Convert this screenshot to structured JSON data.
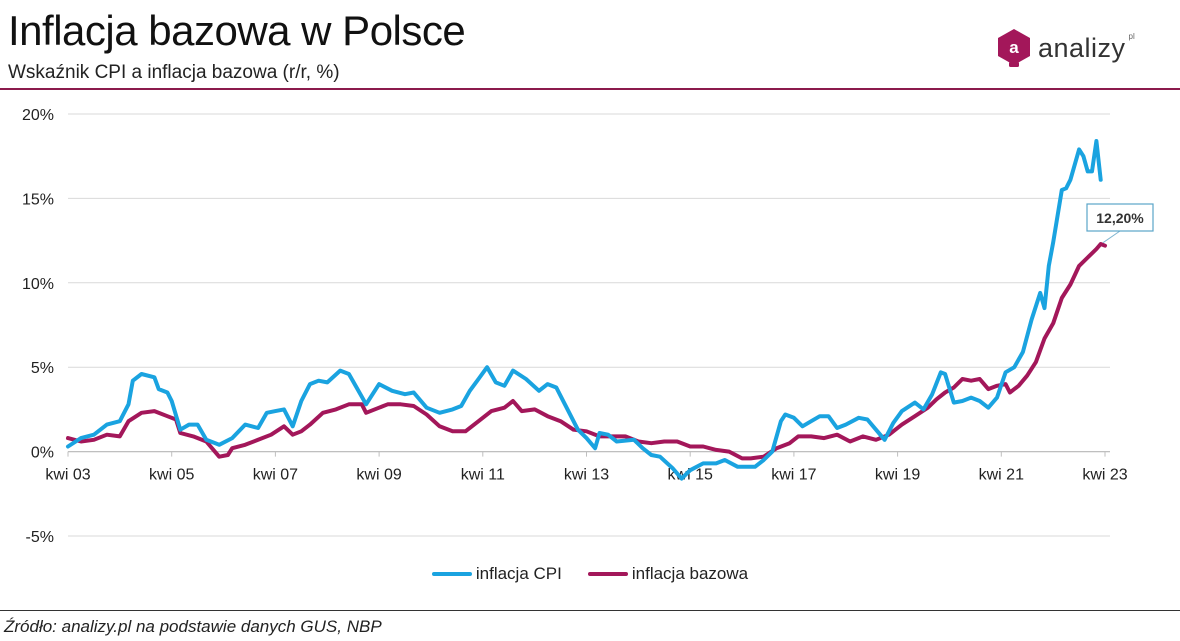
{
  "header": {
    "title": "Inflacja bazowa w Polsce",
    "subtitle": "Wskaźnik CPI a inflacja bazowa (r/r, %)"
  },
  "logo": {
    "text": "analizy",
    "sup": "pl",
    "color": "#a3175a",
    "icon": "analizy-logo-icon"
  },
  "colors": {
    "cpi": "#1aa3e0",
    "core": "#a3175a",
    "rule": "#8b1a4c"
  },
  "source": "Źródło: analizy.pl na podstawie danych GUS, NBP",
  "chart_data": {
    "type": "line",
    "ylim": [
      -5,
      20
    ],
    "yticks": [
      "-5%",
      "0%",
      "5%",
      "10%",
      "15%",
      "20%"
    ],
    "xticks": [
      "kwi 03",
      "kwi 05",
      "kwi 07",
      "kwi 09",
      "kwi 11",
      "kwi 13",
      "kwi 15",
      "kwi 17",
      "kwi 19",
      "kwi 21",
      "kwi 23"
    ],
    "x_range": [
      "2003-04",
      "2023-04"
    ],
    "grid": "horizontal",
    "legend": "bottom",
    "annotation": {
      "text": "12,20%",
      "series": "inflacja bazowa",
      "date": "2023-04",
      "value": 12.2
    },
    "series": [
      {
        "name": "inflacja CPI",
        "color": "#1aa3e0",
        "points": [
          [
            "2003-04",
            0.3
          ],
          [
            "2003-07",
            0.8
          ],
          [
            "2003-10",
            1.0
          ],
          [
            "2004-01",
            1.6
          ],
          [
            "2004-04",
            1.8
          ],
          [
            "2004-06",
            2.8
          ],
          [
            "2004-07",
            4.2
          ],
          [
            "2004-09",
            4.6
          ],
          [
            "2004-12",
            4.4
          ],
          [
            "2005-01",
            3.7
          ],
          [
            "2005-03",
            3.5
          ],
          [
            "2005-04",
            3.0
          ],
          [
            "2005-06",
            1.3
          ],
          [
            "2005-08",
            1.6
          ],
          [
            "2005-10",
            1.6
          ],
          [
            "2005-12",
            0.7
          ],
          [
            "2006-03",
            0.4
          ],
          [
            "2006-06",
            0.8
          ],
          [
            "2006-09",
            1.6
          ],
          [
            "2006-12",
            1.4
          ],
          [
            "2007-02",
            2.3
          ],
          [
            "2007-04",
            2.4
          ],
          [
            "2007-06",
            2.5
          ],
          [
            "2007-08",
            1.5
          ],
          [
            "2007-10",
            3.0
          ],
          [
            "2007-12",
            4.0
          ],
          [
            "2008-02",
            4.2
          ],
          [
            "2008-04",
            4.1
          ],
          [
            "2008-07",
            4.8
          ],
          [
            "2008-09",
            4.6
          ],
          [
            "2008-11",
            3.7
          ],
          [
            "2009-01",
            2.8
          ],
          [
            "2009-04",
            4.0
          ],
          [
            "2009-07",
            3.6
          ],
          [
            "2009-10",
            3.4
          ],
          [
            "2009-12",
            3.5
          ],
          [
            "2010-03",
            2.6
          ],
          [
            "2010-06",
            2.3
          ],
          [
            "2010-09",
            2.5
          ],
          [
            "2010-11",
            2.7
          ],
          [
            "2011-01",
            3.6
          ],
          [
            "2011-03",
            4.3
          ],
          [
            "2011-05",
            5.0
          ],
          [
            "2011-07",
            4.1
          ],
          [
            "2011-09",
            3.9
          ],
          [
            "2011-11",
            4.8
          ],
          [
            "2012-02",
            4.3
          ],
          [
            "2012-05",
            3.6
          ],
          [
            "2012-07",
            4.0
          ],
          [
            "2012-09",
            3.8
          ],
          [
            "2012-11",
            2.8
          ],
          [
            "2013-02",
            1.3
          ],
          [
            "2013-04",
            0.8
          ],
          [
            "2013-06",
            0.2
          ],
          [
            "2013-07",
            1.1
          ],
          [
            "2013-09",
            1.0
          ],
          [
            "2013-11",
            0.6
          ],
          [
            "2014-03",
            0.7
          ],
          [
            "2014-05",
            0.2
          ],
          [
            "2014-07",
            -0.2
          ],
          [
            "2014-09",
            -0.3
          ],
          [
            "2014-12",
            -1.0
          ],
          [
            "2015-02",
            -1.6
          ],
          [
            "2015-04",
            -1.1
          ],
          [
            "2015-07",
            -0.7
          ],
          [
            "2015-10",
            -0.7
          ],
          [
            "2015-12",
            -0.5
          ],
          [
            "2016-03",
            -0.9
          ],
          [
            "2016-05",
            -0.9
          ],
          [
            "2016-07",
            -0.9
          ],
          [
            "2016-09",
            -0.5
          ],
          [
            "2016-11",
            0.0
          ],
          [
            "2017-01",
            1.8
          ],
          [
            "2017-02",
            2.2
          ],
          [
            "2017-04",
            2.0
          ],
          [
            "2017-06",
            1.5
          ],
          [
            "2017-08",
            1.8
          ],
          [
            "2017-10",
            2.1
          ],
          [
            "2017-12",
            2.1
          ],
          [
            "2018-02",
            1.4
          ],
          [
            "2018-04",
            1.6
          ],
          [
            "2018-07",
            2.0
          ],
          [
            "2018-09",
            1.9
          ],
          [
            "2018-11",
            1.3
          ],
          [
            "2019-01",
            0.7
          ],
          [
            "2019-03",
            1.7
          ],
          [
            "2019-05",
            2.4
          ],
          [
            "2019-08",
            2.9
          ],
          [
            "2019-10",
            2.5
          ],
          [
            "2019-12",
            3.4
          ],
          [
            "2020-02",
            4.7
          ],
          [
            "2020-03",
            4.6
          ],
          [
            "2020-05",
            2.9
          ],
          [
            "2020-07",
            3.0
          ],
          [
            "2020-09",
            3.2
          ],
          [
            "2020-11",
            3.0
          ],
          [
            "2021-01",
            2.6
          ],
          [
            "2021-03",
            3.2
          ],
          [
            "2021-05",
            4.7
          ],
          [
            "2021-07",
            5.0
          ],
          [
            "2021-09",
            5.9
          ],
          [
            "2021-11",
            7.8
          ],
          [
            "2022-01",
            9.4
          ],
          [
            "2022-02",
            8.5
          ],
          [
            "2022-03",
            11.0
          ],
          [
            "2022-04",
            12.4
          ],
          [
            "2022-06",
            15.5
          ],
          [
            "2022-07",
            15.6
          ],
          [
            "2022-08",
            16.1
          ],
          [
            "2022-10",
            17.9
          ],
          [
            "2022-11",
            17.5
          ],
          [
            "2022-12",
            16.6
          ],
          [
            "2023-01",
            16.6
          ],
          [
            "2023-02",
            18.4
          ],
          [
            "2023-03",
            16.1
          ]
        ]
      },
      {
        "name": "inflacja bazowa",
        "color": "#a3175a",
        "points": [
          [
            "2003-04",
            0.8
          ],
          [
            "2003-07",
            0.6
          ],
          [
            "2003-10",
            0.7
          ],
          [
            "2004-01",
            1.0
          ],
          [
            "2004-04",
            0.9
          ],
          [
            "2004-06",
            1.8
          ],
          [
            "2004-09",
            2.3
          ],
          [
            "2004-12",
            2.4
          ],
          [
            "2005-03",
            2.1
          ],
          [
            "2005-05",
            1.9
          ],
          [
            "2005-06",
            1.1
          ],
          [
            "2005-09",
            0.9
          ],
          [
            "2005-12",
            0.6
          ],
          [
            "2006-03",
            -0.3
          ],
          [
            "2006-05",
            -0.2
          ],
          [
            "2006-06",
            0.2
          ],
          [
            "2006-09",
            0.4
          ],
          [
            "2006-12",
            0.7
          ],
          [
            "2007-03",
            1.0
          ],
          [
            "2007-06",
            1.5
          ],
          [
            "2007-08",
            1.0
          ],
          [
            "2007-10",
            1.2
          ],
          [
            "2007-12",
            1.6
          ],
          [
            "2008-03",
            2.3
          ],
          [
            "2008-06",
            2.5
          ],
          [
            "2008-09",
            2.8
          ],
          [
            "2008-12",
            2.8
          ],
          [
            "2009-01",
            2.3
          ],
          [
            "2009-04",
            2.6
          ],
          [
            "2009-06",
            2.8
          ],
          [
            "2009-09",
            2.8
          ],
          [
            "2009-12",
            2.7
          ],
          [
            "2010-03",
            2.2
          ],
          [
            "2010-06",
            1.5
          ],
          [
            "2010-09",
            1.2
          ],
          [
            "2010-12",
            1.2
          ],
          [
            "2011-03",
            1.8
          ],
          [
            "2011-06",
            2.4
          ],
          [
            "2011-09",
            2.6
          ],
          [
            "2011-11",
            3.0
          ],
          [
            "2012-01",
            2.4
          ],
          [
            "2012-04",
            2.5
          ],
          [
            "2012-07",
            2.1
          ],
          [
            "2012-10",
            1.8
          ],
          [
            "2013-01",
            1.3
          ],
          [
            "2013-04",
            1.2
          ],
          [
            "2013-07",
            0.9
          ],
          [
            "2013-10",
            0.9
          ],
          [
            "2014-01",
            0.9
          ],
          [
            "2014-04",
            0.6
          ],
          [
            "2014-07",
            0.5
          ],
          [
            "2014-10",
            0.6
          ],
          [
            "2015-01",
            0.6
          ],
          [
            "2015-04",
            0.3
          ],
          [
            "2015-07",
            0.3
          ],
          [
            "2015-10",
            0.1
          ],
          [
            "2016-01",
            0.0
          ],
          [
            "2016-04",
            -0.4
          ],
          [
            "2016-06",
            -0.4
          ],
          [
            "2016-09",
            -0.3
          ],
          [
            "2016-12",
            0.2
          ],
          [
            "2017-03",
            0.5
          ],
          [
            "2017-05",
            0.9
          ],
          [
            "2017-08",
            0.9
          ],
          [
            "2017-11",
            0.8
          ],
          [
            "2018-02",
            1.0
          ],
          [
            "2018-05",
            0.6
          ],
          [
            "2018-08",
            0.9
          ],
          [
            "2018-11",
            0.7
          ],
          [
            "2019-02",
            1.0
          ],
          [
            "2019-05",
            1.6
          ],
          [
            "2019-08",
            2.1
          ],
          [
            "2019-11",
            2.6
          ],
          [
            "2020-01",
            3.1
          ],
          [
            "2020-03",
            3.5
          ],
          [
            "2020-05",
            3.8
          ],
          [
            "2020-07",
            4.3
          ],
          [
            "2020-09",
            4.2
          ],
          [
            "2020-11",
            4.3
          ],
          [
            "2021-01",
            3.7
          ],
          [
            "2021-03",
            3.9
          ],
          [
            "2021-05",
            4.0
          ],
          [
            "2021-06",
            3.5
          ],
          [
            "2021-08",
            3.9
          ],
          [
            "2021-10",
            4.5
          ],
          [
            "2021-12",
            5.3
          ],
          [
            "2022-02",
            6.7
          ],
          [
            "2022-04",
            7.6
          ],
          [
            "2022-06",
            9.1
          ],
          [
            "2022-08",
            9.9
          ],
          [
            "2022-10",
            11.0
          ],
          [
            "2022-12",
            11.5
          ],
          [
            "2023-02",
            12.0
          ],
          [
            "2023-03",
            12.3
          ],
          [
            "2023-04",
            12.2
          ]
        ]
      }
    ]
  }
}
